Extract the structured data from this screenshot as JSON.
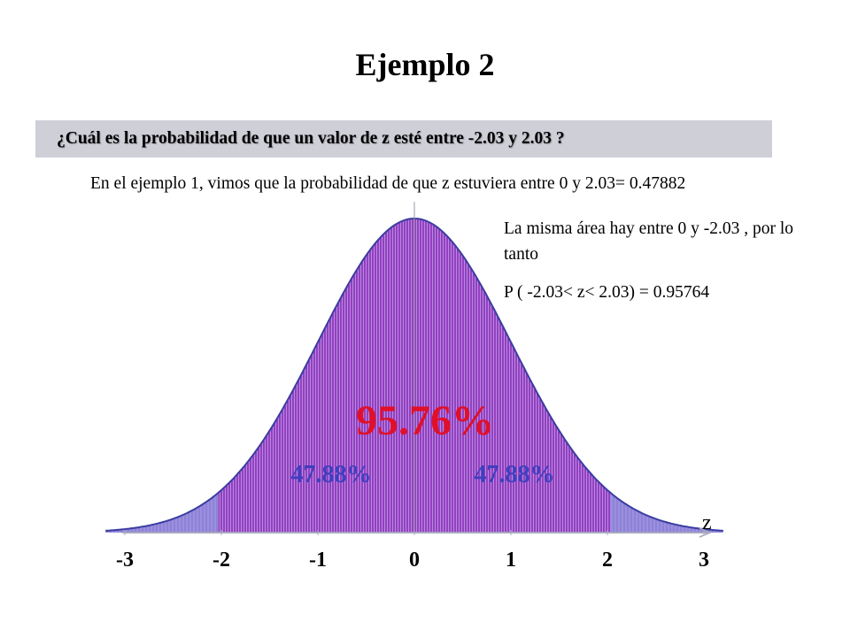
{
  "title": "Ejemplo 2",
  "question": "¿Cuál es la probabilidad de que un valor de z esté entre -2.03 y 2.03 ?",
  "intro": "En el ejemplo 1, vimos que la probabilidad de que z estuviera entre 0 y 2.03= 0.47882",
  "note_same_area": "La misma área hay entre  0  y -2.03 , por lo tanto",
  "note_result": "P ( -2.03< z< 2.03) = 0.95764",
  "colors": {
    "curve_fill": "#8b7fd6",
    "curve_outline": "#3a3da0",
    "shaded_region": "#a04cc8",
    "center_label": "#e0102a",
    "half_labels": "#3f3fbf",
    "question_box": "#cfcfd8"
  },
  "chart_data": {
    "type": "area",
    "distribution": "standard normal",
    "x_range": [
      -3,
      3
    ],
    "x_ticks": [
      "-3",
      "-2",
      "-1",
      "0",
      "1",
      "2",
      "3"
    ],
    "shaded_interval": [
      -2.03,
      2.03
    ],
    "axis_label": "z",
    "center_label": "95.76%",
    "left_half_label": "47.88%",
    "right_half_label": "47.88%"
  }
}
